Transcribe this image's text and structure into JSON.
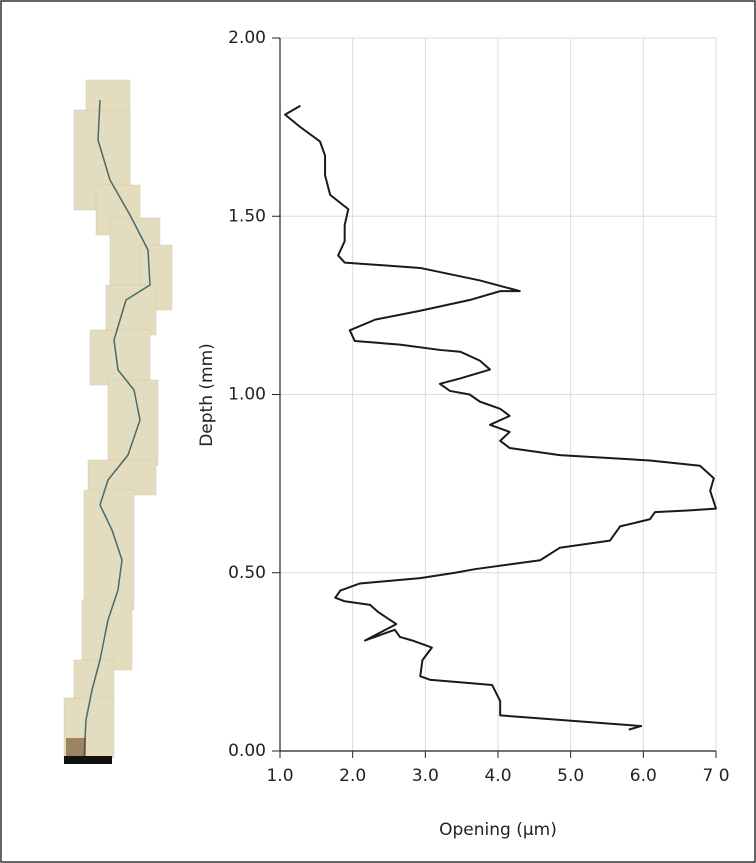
{
  "chart_data": {
    "type": "line",
    "xlabel": "Opening (µm)",
    "ylabel": "Depth (mm)",
    "xlim": [
      1,
      7
    ],
    "xticks": [
      {
        "value": 1,
        "label": "1.0"
      },
      {
        "value": 2,
        "label": "2.0"
      },
      {
        "value": 3,
        "label": "3.0"
      },
      {
        "value": 4,
        "label": "4.0"
      },
      {
        "value": 5,
        "label": "5.0"
      },
      {
        "value": 6,
        "label": "6.0"
      },
      {
        "value": 7,
        "label": "7 0"
      }
    ],
    "ylim": [
      0,
      2
    ],
    "yticks": [
      {
        "value": 0,
        "label": "0.00"
      },
      {
        "value": 0.5,
        "label": "0.50"
      },
      {
        "value": 1,
        "label": "1.00"
      },
      {
        "value": 1.5,
        "label": "1.50"
      },
      {
        "value": 2,
        "label": "2.00"
      }
    ],
    "grid": true,
    "x": [
      5.8,
      5.97,
      4.03,
      4.03,
      3.92,
      3.06,
      2.93,
      2.96,
      3.09,
      2.82,
      2.65,
      2.58,
      2.17,
      2.6,
      2.35,
      2.24,
      1.89,
      1.76,
      1.83,
      2.1,
      2.93,
      3.41,
      3.68,
      4.58,
      4.85,
      5.54,
      5.68,
      6.09,
      6.16,
      6.64,
      7.0,
      6.92,
      6.97,
      6.78,
      6.09,
      4.85,
      4.16,
      4.03,
      4.16,
      3.89,
      4.16,
      4.03,
      3.75,
      3.61,
      3.34,
      3.2,
      3.48,
      3.89,
      3.75,
      3.48,
      3.2,
      2.65,
      2.03,
      1.96,
      2.31,
      2.93,
      3.61,
      4.03,
      4.3,
      3.75,
      2.93,
      1.89,
      1.8,
      1.89,
      1.89,
      1.94,
      1.69,
      1.62,
      1.62,
      1.55,
      1.28,
      1.07,
      1.28
    ],
    "series": [
      {
        "color": "#1a1a1a",
        "values": [
          0.06,
          0.07,
          0.1,
          0.14,
          0.185,
          0.2,
          0.21,
          0.255,
          0.29,
          0.31,
          0.32,
          0.34,
          0.31,
          0.356,
          0.39,
          0.41,
          0.42,
          0.43,
          0.45,
          0.47,
          0.485,
          0.5,
          0.51,
          0.535,
          0.57,
          0.59,
          0.63,
          0.65,
          0.67,
          0.675,
          0.68,
          0.73,
          0.765,
          0.8,
          0.815,
          0.83,
          0.85,
          0.87,
          0.895,
          0.915,
          0.94,
          0.96,
          0.98,
          1.0,
          1.01,
          1.03,
          1.045,
          1.07,
          1.095,
          1.12,
          1.125,
          1.14,
          1.15,
          1.18,
          1.21,
          1.235,
          1.265,
          1.29,
          1.29,
          1.32,
          1.355,
          1.37,
          1.39,
          1.43,
          1.475,
          1.52,
          1.56,
          1.615,
          1.67,
          1.71,
          1.75,
          1.785,
          1.81
        ]
      }
    ]
  }
}
